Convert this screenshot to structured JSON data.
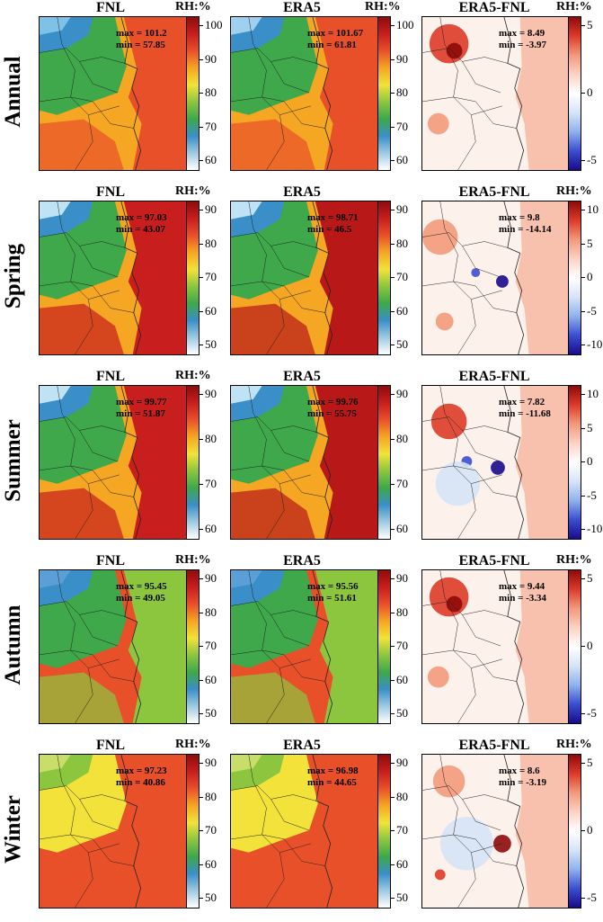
{
  "rows": [
    {
      "season": "Annual",
      "panels": [
        {
          "title": "FNL",
          "max": "max = 101.2",
          "min": "min = 57.85",
          "type": "rh",
          "variant": 0
        },
        {
          "title": "ERA5",
          "max": "max = 101.67",
          "min": "min = 61.81",
          "type": "rh",
          "variant": 1
        },
        {
          "title": "ERA5-FNL",
          "max": "max = 8.49",
          "min": "min = -3.97",
          "type": "diff",
          "variant": 0
        }
      ],
      "cb1": {
        "title": "RH:%",
        "ticks": [
          "100",
          "90",
          "80",
          "70",
          "60"
        ]
      },
      "cb2": {
        "title": "RH:%",
        "ticks": [
          "100",
          "90",
          "80",
          "70",
          "60"
        ]
      },
      "cb3": {
        "title": "RH:%",
        "ticks": [
          "5",
          "0",
          "-5"
        ]
      }
    },
    {
      "season": "Spring",
      "panels": [
        {
          "title": "FNL",
          "max": "max = 97.03",
          "min": "min = 43.07",
          "type": "rh",
          "variant": 2
        },
        {
          "title": "ERA5",
          "max": "max = 98.71",
          "min": "min = 46.5",
          "type": "rh",
          "variant": 3
        },
        {
          "title": "ERA5-FNL",
          "max": "max = 9.8",
          "min": "min = -14.14",
          "type": "diff",
          "variant": 1
        }
      ],
      "cb1": {
        "title": "RH:%",
        "ticks": [
          "90",
          "80",
          "70",
          "60",
          "50"
        ]
      },
      "cb2": {
        "title": "",
        "ticks": [
          "90",
          "80",
          "70",
          "60",
          "50"
        ]
      },
      "cb3": {
        "title": "RH:%",
        "ticks": [
          "10",
          "5",
          "0",
          "-5",
          "-10"
        ]
      }
    },
    {
      "season": "Summer",
      "panels": [
        {
          "title": "FNL",
          "max": "max = 99.77",
          "min": "min = 51.87",
          "type": "rh",
          "variant": 2
        },
        {
          "title": "ERA5",
          "max": "max = 99.76",
          "min": "min = 55.75",
          "type": "rh",
          "variant": 3
        },
        {
          "title": "ERA5-FNL",
          "max": "max = 7.82",
          "min": "min = -11.68",
          "type": "diff",
          "variant": 2
        }
      ],
      "cb1": {
        "title": "RH:%",
        "ticks": [
          "90",
          "80",
          "70",
          "60"
        ]
      },
      "cb2": {
        "title": "",
        "ticks": [
          "90",
          "80",
          "70",
          "60"
        ]
      },
      "cb3": {
        "title": "",
        "ticks": [
          "10",
          "5",
          "0",
          "-5",
          "-10"
        ]
      }
    },
    {
      "season": "Autumn",
      "panels": [
        {
          "title": "FNL",
          "max": "max = 95.45",
          "min": "min = 49.05",
          "type": "rh",
          "variant": 4
        },
        {
          "title": "ERA5",
          "max": "max = 95.56",
          "min": "min = 51.61",
          "type": "rh",
          "variant": 4
        },
        {
          "title": "ERA5-FNL",
          "max": "max = 9.44",
          "min": "min = -3.34",
          "type": "diff",
          "variant": 0
        }
      ],
      "cb1": {
        "title": "RH:%",
        "ticks": [
          "90",
          "80",
          "70",
          "60",
          "50"
        ]
      },
      "cb2": {
        "title": "",
        "ticks": [
          "90",
          "80",
          "70",
          "60",
          "50"
        ]
      },
      "cb3": {
        "title": "RH:%",
        "ticks": [
          "5",
          "0",
          "-5"
        ]
      }
    },
    {
      "season": "Winter",
      "panels": [
        {
          "title": "FNL",
          "max": "max = 97.23",
          "min": "min = 40.86",
          "type": "rh",
          "variant": 5
        },
        {
          "title": "ERA5",
          "max": "max = 96.98",
          "min": "min = 44.65",
          "type": "rh",
          "variant": 5
        },
        {
          "title": "ERA5-FNL",
          "max": "max = 8.6",
          "min": "min = -3.19",
          "type": "diff",
          "variant": 3
        }
      ],
      "cb1": {
        "title": "RH:%",
        "ticks": [
          "90",
          "80",
          "70",
          "60",
          "50"
        ]
      },
      "cb2": {
        "title": "",
        "ticks": [
          "90",
          "80",
          "70",
          "60",
          "50"
        ]
      },
      "cb3": {
        "title": "RH:%",
        "ticks": [
          "5",
          "0",
          "-5"
        ]
      }
    }
  ],
  "colors": {
    "rh_scale": [
      "#ffffff",
      "#9ecae1",
      "#3a8fc8",
      "#3ea84a",
      "#8cc63f",
      "#f2e23a",
      "#f5a623",
      "#e8502a",
      "#c81e1e",
      "#8e0c0c"
    ],
    "diff_scale": [
      "#1a0a8c",
      "#3a4fd0",
      "#8fb2ee",
      "#d6e4f7",
      "#ffffff",
      "#fbd3c4",
      "#f39a7c",
      "#dd3b28",
      "#8e0a0a"
    ],
    "border": "#222222"
  }
}
